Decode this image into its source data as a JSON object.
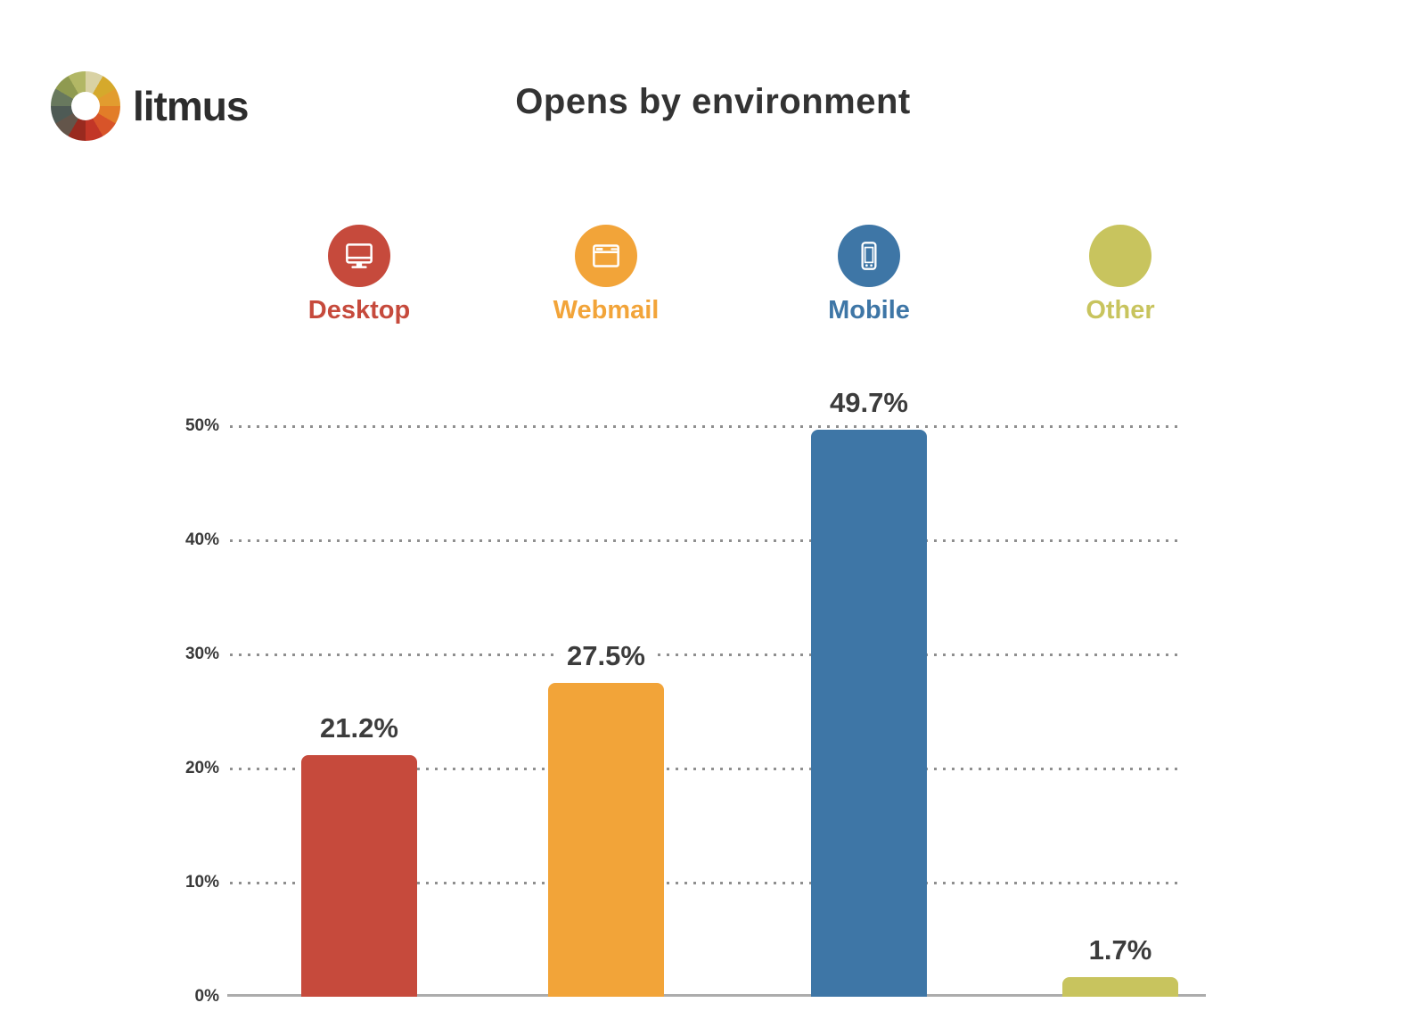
{
  "header": {
    "logo_text": "litmus",
    "title": "Opens by environment"
  },
  "logo": {
    "wheel_colors": [
      "#d9d2a4",
      "#d5a92c",
      "#e29c2f",
      "#e27d28",
      "#d85429",
      "#c23627",
      "#992a1f",
      "#63554a",
      "#4e5a55",
      "#68785e",
      "#8f9a50",
      "#b2b765"
    ]
  },
  "chart_data": {
    "type": "bar",
    "title": "Opens by environment",
    "categories": [
      "Desktop",
      "Webmail",
      "Mobile",
      "Other"
    ],
    "values": [
      21.2,
      27.5,
      49.7,
      1.7
    ],
    "value_labels": [
      "21.2%",
      "27.5%",
      "49.7%",
      "1.7%"
    ],
    "colors": [
      "#C64A3C",
      "#F2A439",
      "#3E76A6",
      "#C8C45E"
    ],
    "icons": [
      "desktop-icon",
      "webmail-icon",
      "mobile-icon",
      "plain-circle"
    ],
    "xlabel": "",
    "ylabel": "",
    "ylim": [
      0,
      55
    ],
    "yticks": [
      {
        "label": "0%",
        "value": 0
      },
      {
        "label": "10%",
        "value": 10
      },
      {
        "label": "20%",
        "value": 20
      },
      {
        "label": "30%",
        "value": 30
      },
      {
        "label": "40%",
        "value": 40
      },
      {
        "label": "50%",
        "value": 50
      }
    ],
    "grid": "dotted horizontal",
    "legend_position": "top"
  }
}
